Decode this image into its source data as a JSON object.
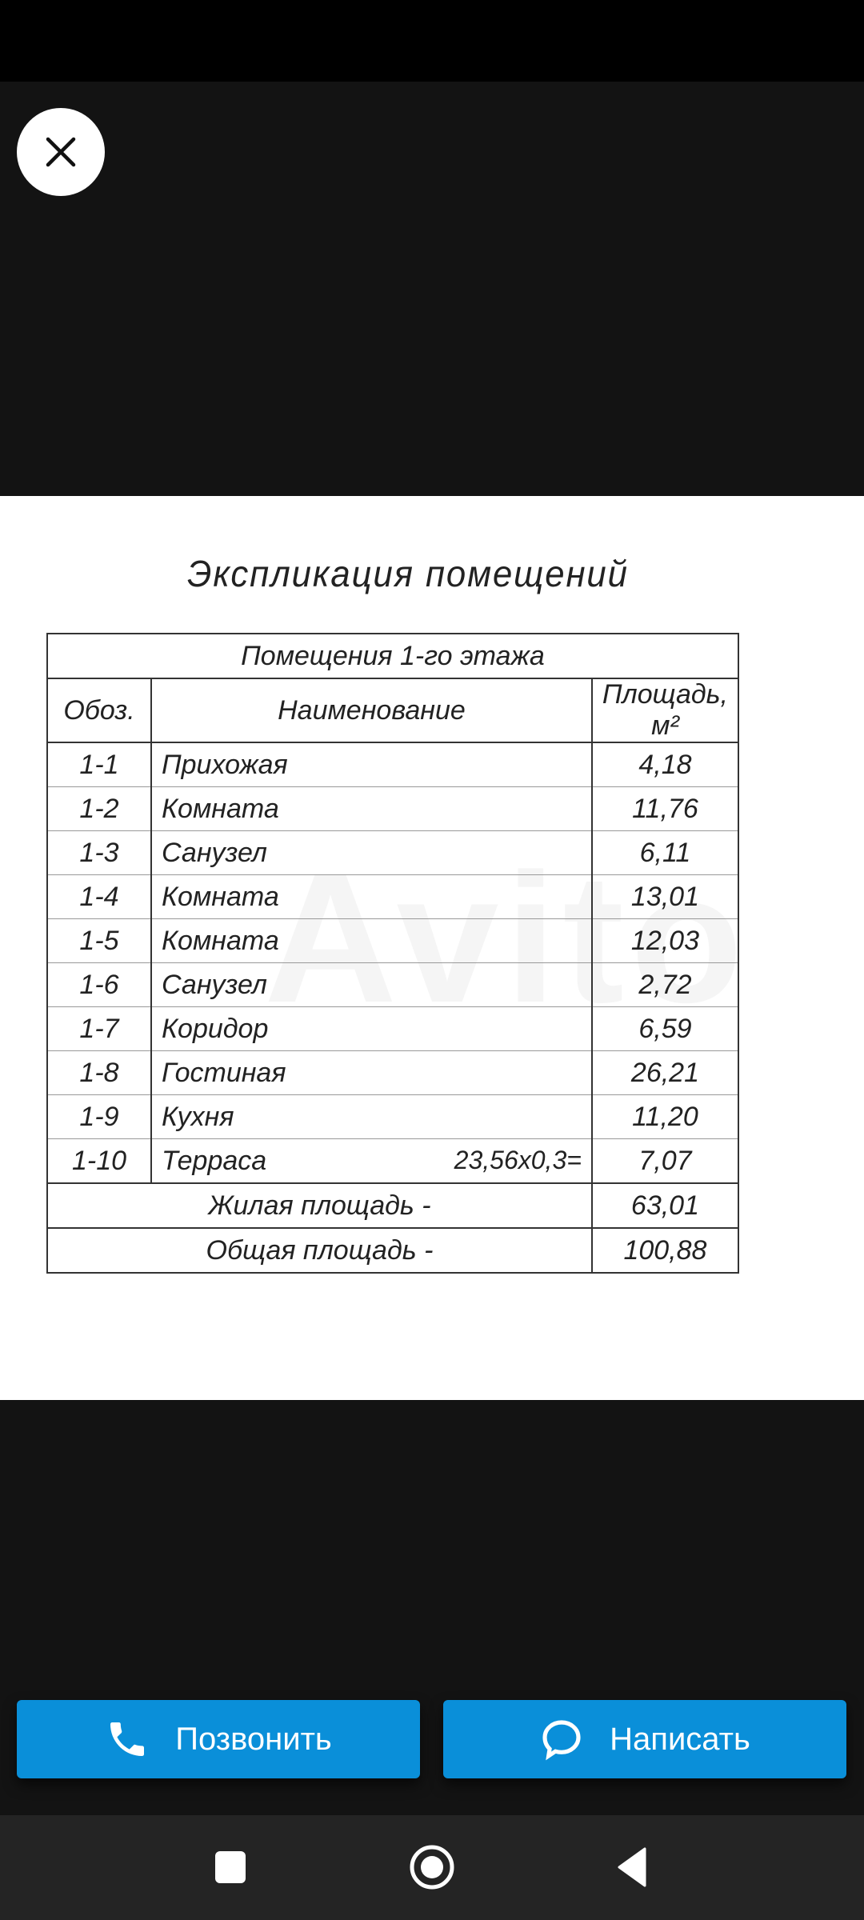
{
  "viewer": {
    "close_icon": "close-icon"
  },
  "document": {
    "title": "Экспликация помещений",
    "table_caption": "Помещения 1-го этажа",
    "headers": {
      "code": "Обоз.",
      "name": "Наименование",
      "area": "Площадь,",
      "area_unit": "м²"
    },
    "rows": [
      {
        "code": "1-1",
        "name": "Прихожая",
        "formula": "",
        "area": "4,18"
      },
      {
        "code": "1-2",
        "name": "Комната",
        "formula": "",
        "area": "11,76"
      },
      {
        "code": "1-3",
        "name": "Санузел",
        "formula": "",
        "area": "6,11"
      },
      {
        "code": "1-4",
        "name": "Комната",
        "formula": "",
        "area": "13,01"
      },
      {
        "code": "1-5",
        "name": "Комната",
        "formula": "",
        "area": "12,03"
      },
      {
        "code": "1-6",
        "name": "Санузел",
        "formula": "",
        "area": "2,72"
      },
      {
        "code": "1-7",
        "name": "Коридор",
        "formula": "",
        "area": "6,59"
      },
      {
        "code": "1-8",
        "name": "Гостиная",
        "formula": "",
        "area": "26,21"
      },
      {
        "code": "1-9",
        "name": "Кухня",
        "formula": "",
        "area": "11,20"
      },
      {
        "code": "1-10",
        "name": "Терраса",
        "formula": "23,56x0,3=",
        "area": "7,07"
      }
    ],
    "living_area_label": "Жилая площадь -",
    "living_area": "63,01",
    "total_area_label": "Общая площадь -",
    "total_area": "100,88",
    "watermark": "Avito"
  },
  "actions": {
    "call_label": "Позвонить",
    "message_label": "Написать",
    "accent": "#0a8fd9"
  },
  "navbar": {
    "recents": "square-icon",
    "home": "circle-icon",
    "back": "triangle-back-icon"
  }
}
